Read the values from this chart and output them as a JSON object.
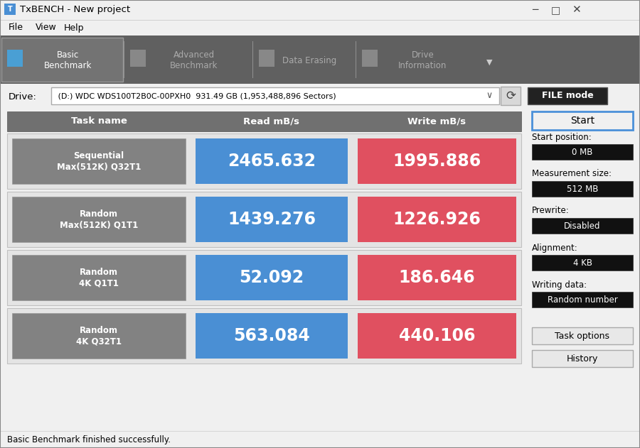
{
  "title_bar": "TxBENCH - New project",
  "menu_items": [
    "File",
    "View",
    "Help"
  ],
  "tabs": [
    "Basic\nBenchmark",
    "Advanced\nBenchmark",
    "Data Erasing",
    "Drive\nInformation"
  ],
  "active_tab": 0,
  "drive_label": "Drive:",
  "drive_value": " (D:) WDC WDS100T2B0C-00PXH0  931.49 GB (1,953,488,896 Sectors)",
  "file_mode_btn": "FILE mode",
  "col_headers": [
    "Task name",
    "Read mB/s",
    "Write mB/s"
  ],
  "rows": [
    {
      "name": "Sequential\nMax(512K) Q32T1",
      "read": "2465.632",
      "write": "1995.886"
    },
    {
      "name": "Random\nMax(512K) Q1T1",
      "read": "1439.276",
      "write": "1226.926"
    },
    {
      "name": "Random\n4K Q1T1",
      "read": "52.092",
      "write": "186.646"
    },
    {
      "name": "Random\n4K Q32T1",
      "read": "563.084",
      "write": "440.106"
    }
  ],
  "right_panel": {
    "start_btn": "Start",
    "fields": [
      {
        "label": "Start position:",
        "value": "0 MB"
      },
      {
        "label": "Measurement size:",
        "value": "512 MB"
      },
      {
        "label": "Prewrite:",
        "value": "Disabled"
      },
      {
        "label": "Alignment:",
        "value": "4 KB"
      },
      {
        "label": "Writing data:",
        "value": "Random number"
      }
    ],
    "extra_btns": [
      "Task options",
      "History"
    ]
  },
  "status_bar": "Basic Benchmark finished successfully.",
  "colors": {
    "window_bg": "#f0f0f0",
    "title_bar_bg": "#f0f0f0",
    "toolbar_bg": "#606060",
    "active_tab_bg": "#737373",
    "active_tab_edge": "#999999",
    "table_header_bg": "#707070",
    "table_header_text": "#ffffff",
    "row_bg": "#e4e4e4",
    "row_border": "#c0c0c0",
    "task_name_bg": "#828282",
    "task_name_text": "#ffffff",
    "read_bg": "#4a8fd4",
    "write_bg": "#e05060",
    "value_text": "#ffffff",
    "right_panel_label": "#000000",
    "dark_btn_bg": "#111111",
    "dark_btn_text": "#ffffff",
    "start_btn_bg": "#f0f0f0",
    "start_btn_border": "#4a90d9",
    "light_btn_bg": "#e8e8e8",
    "light_btn_edge": "#aaaaaa",
    "status_bg": "#f0f0f0",
    "status_text": "#000000",
    "file_mode_bg": "#222222",
    "separator_color": "#888888"
  }
}
